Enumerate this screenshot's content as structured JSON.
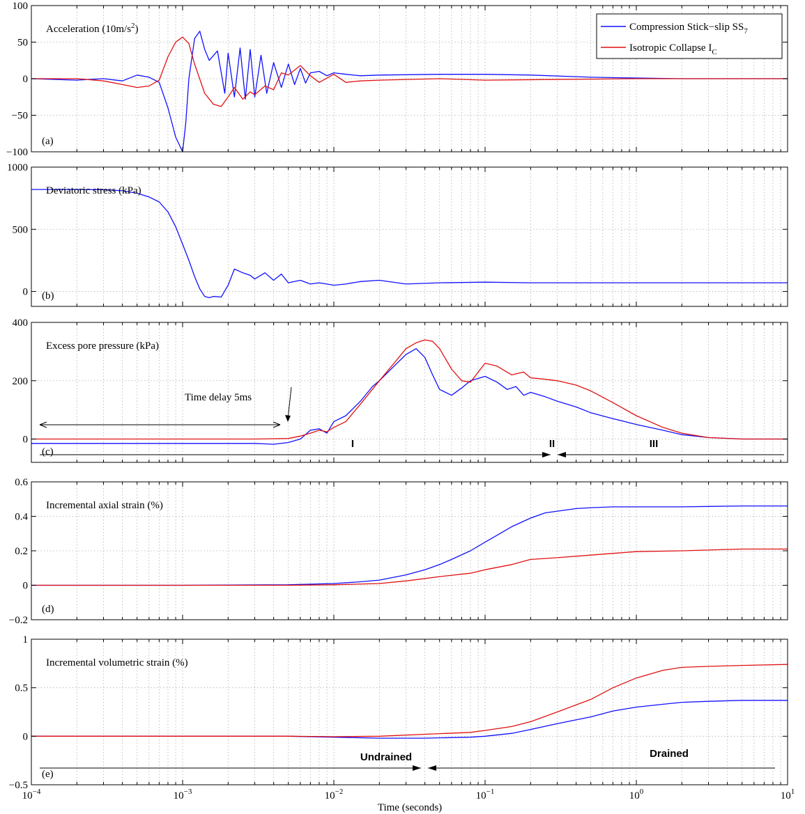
{
  "colors": {
    "blue": "#1010ff",
    "red": "#e01010",
    "grid": "#b0b0b0"
  },
  "chart_data": [
    {
      "type": "line",
      "panel": "a",
      "title_main": "Acceleration (10m/s",
      "title_sup": "2",
      "title_end": ")",
      "letter": "(a)",
      "xscale": "log",
      "xlim": [
        0.0001,
        10
      ],
      "ylim": [
        -100,
        100
      ],
      "yticks": [
        -100,
        -50,
        0,
        50,
        100
      ],
      "grid": true,
      "legend": {
        "placement": "top-right",
        "entries": [
          {
            "main": "Compression Stick−slip SS",
            "sub": "7",
            "color": "#1010ff"
          },
          {
            "main": "Isotropic Collapse I",
            "sub": "C",
            "color": "#e01010"
          }
        ]
      },
      "series": [
        {
          "name": "Compression Stick−slip SS7",
          "color": "#1010ff",
          "x": [
            0.0001,
            0.0002,
            0.0003,
            0.0004,
            0.0005,
            0.0006,
            0.0007,
            0.0008,
            0.0009,
            0.001,
            0.00105,
            0.0011,
            0.0012,
            0.0013,
            0.0014,
            0.0015,
            0.0017,
            0.0019,
            0.002,
            0.0022,
            0.0024,
            0.0026,
            0.0028,
            0.003,
            0.0033,
            0.0036,
            0.004,
            0.0045,
            0.005,
            0.0055,
            0.006,
            0.0065,
            0.007,
            0.008,
            0.009,
            0.01,
            0.012,
            0.015,
            0.02,
            0.05,
            0.1,
            0.2,
            0.5,
            1,
            2,
            5,
            10
          ],
          "y": [
            0,
            -2,
            0,
            -3,
            5,
            2,
            -5,
            -40,
            -80,
            -100,
            -60,
            0,
            55,
            65,
            40,
            25,
            38,
            -20,
            35,
            -25,
            42,
            -28,
            40,
            -25,
            32,
            -20,
            22,
            -12,
            20,
            -8,
            14,
            -6,
            8,
            10,
            4,
            8,
            6,
            4,
            5,
            6,
            6,
            5,
            2,
            1,
            0,
            0,
            0
          ]
        },
        {
          "name": "Isotropic Collapse IC",
          "color": "#e01010",
          "x": [
            0.0001,
            0.0002,
            0.0003,
            0.0004,
            0.0005,
            0.0006,
            0.0007,
            0.0008,
            0.0009,
            0.001,
            0.0011,
            0.0012,
            0.0014,
            0.0016,
            0.0018,
            0.002,
            0.0022,
            0.0025,
            0.0028,
            0.003,
            0.0035,
            0.004,
            0.0045,
            0.005,
            0.006,
            0.007,
            0.008,
            0.01,
            0.012,
            0.015,
            0.02,
            0.05,
            0.1,
            1,
            10
          ],
          "y": [
            0,
            0,
            -3,
            -8,
            -12,
            -10,
            -2,
            30,
            50,
            57,
            48,
            20,
            -20,
            -35,
            -38,
            -25,
            -12,
            -28,
            -18,
            -22,
            -10,
            -15,
            8,
            5,
            18,
            4,
            -5,
            6,
            -5,
            -3,
            -2,
            0,
            -2,
            0,
            0
          ]
        }
      ]
    },
    {
      "type": "line",
      "panel": "b",
      "title_main": "Deviatoric stress (kPa)",
      "letter": "(b)",
      "xscale": "log",
      "xlim": [
        0.0001,
        10
      ],
      "ylim": [
        -120,
        1000
      ],
      "yticks": [
        0,
        500,
        1000
      ],
      "grid": true,
      "series": [
        {
          "name": "Compression Stick−slip SS7",
          "color": "#1010ff",
          "x": [
            0.0001,
            0.0002,
            0.0003,
            0.0004,
            0.0005,
            0.0006,
            0.0007,
            0.0008,
            0.0009,
            0.001,
            0.0011,
            0.0012,
            0.0013,
            0.0014,
            0.0015,
            0.0016,
            0.0018,
            0.002,
            0.0022,
            0.0025,
            0.0028,
            0.003,
            0.0035,
            0.004,
            0.0045,
            0.005,
            0.006,
            0.007,
            0.008,
            0.01,
            0.012,
            0.015,
            0.02,
            0.03,
            0.05,
            0.1,
            0.2,
            0.5,
            1,
            10
          ],
          "y": [
            820,
            820,
            818,
            810,
            790,
            760,
            720,
            640,
            520,
            380,
            250,
            120,
            20,
            -40,
            -50,
            -40,
            -45,
            50,
            180,
            150,
            130,
            100,
            150,
            90,
            140,
            70,
            90,
            60,
            70,
            50,
            60,
            80,
            90,
            60,
            70,
            75,
            70,
            70,
            70,
            70
          ]
        }
      ]
    },
    {
      "type": "line",
      "panel": "c",
      "title_main": "Excess pore pressure (kPa)",
      "letter": "(c)",
      "xscale": "log",
      "xlim": [
        0.0001,
        10
      ],
      "ylim": [
        -80,
        400
      ],
      "yticks": [
        0,
        200,
        400
      ],
      "grid": true,
      "annotations": {
        "delay_label": "Time delay 5ms",
        "phase1": "I",
        "phase2": "II",
        "phase3": "III"
      },
      "series": [
        {
          "name": "Compression Stick−slip SS7",
          "color": "#1010ff",
          "x": [
            0.0001,
            0.001,
            0.002,
            0.003,
            0.004,
            0.005,
            0.006,
            0.007,
            0.008,
            0.009,
            0.01,
            0.012,
            0.015,
            0.018,
            0.02,
            0.025,
            0.03,
            0.035,
            0.04,
            0.045,
            0.05,
            0.06,
            0.07,
            0.08,
            0.1,
            0.12,
            0.14,
            0.16,
            0.18,
            0.2,
            0.25,
            0.3,
            0.4,
            0.5,
            0.7,
            1,
            1.5,
            2,
            3,
            5,
            10
          ],
          "y": [
            -15,
            -15,
            -15,
            -15,
            -18,
            -12,
            0,
            30,
            35,
            20,
            60,
            80,
            130,
            180,
            200,
            250,
            290,
            310,
            280,
            220,
            170,
            150,
            175,
            200,
            215,
            195,
            170,
            180,
            150,
            160,
            145,
            130,
            110,
            90,
            70,
            50,
            30,
            15,
            5,
            0,
            0
          ]
        },
        {
          "name": "Isotropic Collapse IC",
          "color": "#e01010",
          "x": [
            0.0001,
            0.001,
            0.003,
            0.005,
            0.006,
            0.007,
            0.008,
            0.009,
            0.01,
            0.012,
            0.015,
            0.02,
            0.025,
            0.03,
            0.035,
            0.04,
            0.045,
            0.05,
            0.06,
            0.07,
            0.08,
            0.1,
            0.12,
            0.15,
            0.18,
            0.2,
            0.25,
            0.3,
            0.4,
            0.5,
            0.7,
            1,
            1.5,
            2,
            3,
            5,
            10
          ],
          "y": [
            0,
            0,
            0,
            2,
            10,
            20,
            30,
            25,
            40,
            60,
            120,
            200,
            260,
            310,
            330,
            340,
            335,
            310,
            240,
            200,
            195,
            260,
            250,
            220,
            230,
            210,
            205,
            200,
            185,
            165,
            125,
            80,
            40,
            20,
            5,
            0,
            0
          ]
        }
      ]
    },
    {
      "type": "line",
      "panel": "d",
      "title_main": "Incremental axial strain (%)",
      "letter": "(d)",
      "xscale": "log",
      "xlim": [
        0.0001,
        10
      ],
      "ylim": [
        -0.2,
        0.6
      ],
      "yticks": [
        -0.2,
        0,
        0.2,
        0.4,
        0.6
      ],
      "grid": true,
      "series": [
        {
          "name": "Compression Stick−slip SS7",
          "color": "#1010ff",
          "x": [
            0.0001,
            0.001,
            0.005,
            0.01,
            0.015,
            0.02,
            0.03,
            0.04,
            0.05,
            0.06,
            0.08,
            0.1,
            0.12,
            0.15,
            0.2,
            0.25,
            0.3,
            0.4,
            0.5,
            0.7,
            1,
            2,
            5,
            10
          ],
          "y": [
            0,
            0,
            0.003,
            0.01,
            0.02,
            0.03,
            0.06,
            0.09,
            0.12,
            0.15,
            0.2,
            0.25,
            0.29,
            0.34,
            0.39,
            0.42,
            0.43,
            0.445,
            0.45,
            0.455,
            0.455,
            0.455,
            0.46,
            0.46
          ]
        },
        {
          "name": "Isotropic Collapse IC",
          "color": "#e01010",
          "x": [
            0.0001,
            0.001,
            0.005,
            0.01,
            0.02,
            0.03,
            0.05,
            0.08,
            0.1,
            0.15,
            0.2,
            0.3,
            0.5,
            0.7,
            1,
            2,
            5,
            10
          ],
          "y": [
            0,
            0,
            0,
            0.003,
            0.01,
            0.025,
            0.05,
            0.07,
            0.09,
            0.12,
            0.15,
            0.16,
            0.175,
            0.185,
            0.195,
            0.2,
            0.21,
            0.21
          ]
        }
      ]
    },
    {
      "type": "line",
      "panel": "e",
      "title_main": "Incremental volumetric strain (%)",
      "letter": "(e)",
      "xscale": "log",
      "xlim": [
        0.0001,
        10
      ],
      "ylim": [
        -0.5,
        1
      ],
      "yticks": [
        -0.5,
        0,
        0.5,
        1
      ],
      "grid": true,
      "annotations": {
        "undrained": "Undrained",
        "drained": "Drained"
      },
      "series": [
        {
          "name": "Compression Stick−slip SS7",
          "color": "#1010ff",
          "x": [
            0.0001,
            0.005,
            0.01,
            0.02,
            0.04,
            0.08,
            0.1,
            0.15,
            0.2,
            0.3,
            0.5,
            0.7,
            1,
            1.5,
            2,
            3,
            5,
            10
          ],
          "y": [
            0,
            0,
            -0.01,
            -0.02,
            -0.02,
            -0.01,
            0,
            0.03,
            0.07,
            0.13,
            0.2,
            0.26,
            0.3,
            0.33,
            0.35,
            0.36,
            0.37,
            0.37
          ]
        },
        {
          "name": "Isotropic Collapse IC",
          "color": "#e01010",
          "x": [
            0.0001,
            0.005,
            0.01,
            0.02,
            0.04,
            0.08,
            0.1,
            0.15,
            0.2,
            0.3,
            0.5,
            0.7,
            1,
            1.5,
            2,
            3,
            5,
            10
          ],
          "y": [
            0,
            0,
            -0.005,
            0,
            0.02,
            0.04,
            0.06,
            0.1,
            0.15,
            0.25,
            0.38,
            0.5,
            0.6,
            0.68,
            0.71,
            0.72,
            0.73,
            0.74
          ]
        }
      ]
    }
  ],
  "xlabel": "Time (seconds)",
  "xtick_labels": [
    {
      "base": "10",
      "exp": "−4"
    },
    {
      "base": "10",
      "exp": "−3"
    },
    {
      "base": "10",
      "exp": "−2"
    },
    {
      "base": "10",
      "exp": "−1"
    },
    {
      "base": "10",
      "exp": "0"
    },
    {
      "base": "10",
      "exp": "1"
    }
  ]
}
